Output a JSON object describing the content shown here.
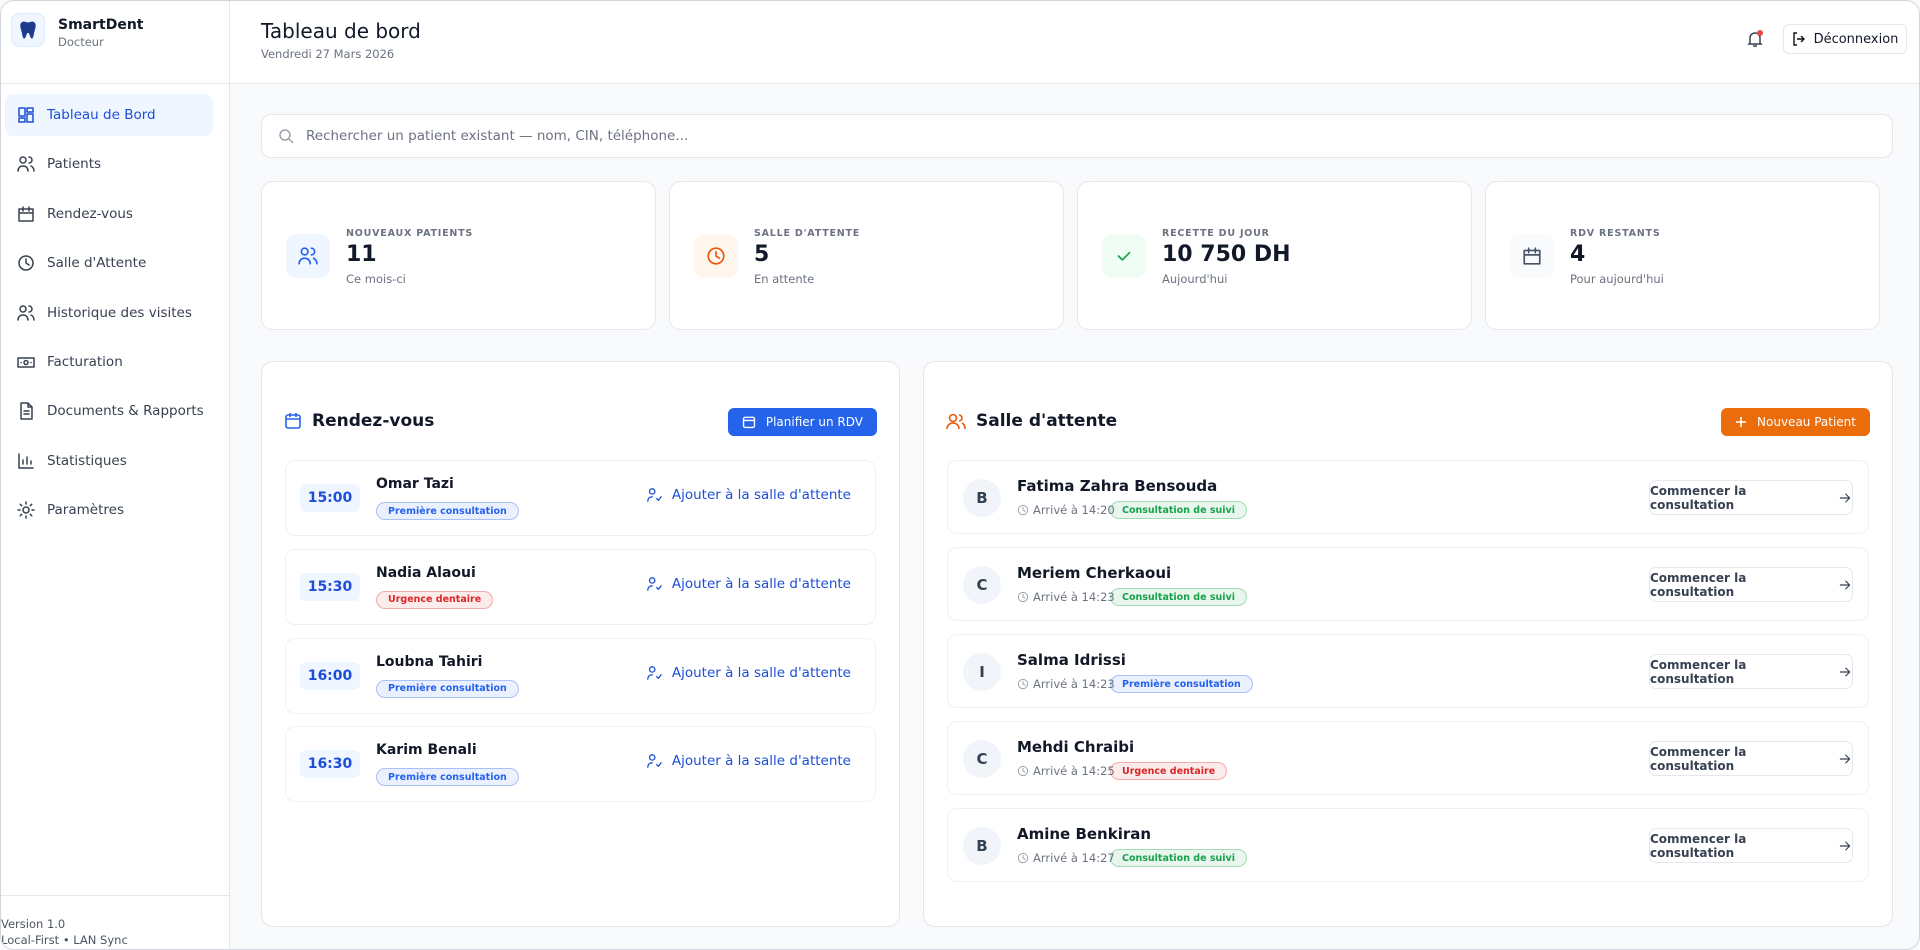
{
  "sidebar": {
    "brand": "SmartDent",
    "role": "Docteur",
    "nav": [
      "Tableau de Bord",
      "Patients",
      "Rendez-vous",
      "Salle d'Attente",
      "Historique des visites",
      "Facturation",
      "Documents & Rapports",
      "Statistiques",
      "Paramètres"
    ],
    "footer": [
      "Version 1.0",
      "Local-First • LAN Sync"
    ]
  },
  "header": {
    "title": "Tableau de bord",
    "date": "Vendredi 27 Mars 2026",
    "logout": "Déconnexion"
  },
  "search": {
    "placeholder": "Rechercher un patient existant — nom, CIN, téléphone..."
  },
  "stats": [
    {
      "label": "NOUVEAUX PATIENTS",
      "value": "11",
      "sub": "Ce mois-ci",
      "color": "#2563eb",
      "bg": "#eff6ff"
    },
    {
      "label": "SALLE D'ATTENTE",
      "value": "5",
      "sub": "En attente",
      "color": "#ea580c",
      "bg": "#fff7ed"
    },
    {
      "label": "RECETTE DU JOUR",
      "value": "10 750 DH",
      "sub": "Aujourd'hui",
      "color": "#16a34a",
      "bg": "#f0fdf4"
    },
    {
      "label": "RDV RESTANTS",
      "value": "4",
      "sub": "Pour aujourd'hui",
      "color": "#475569",
      "bg": "#f8fafc"
    }
  ],
  "appointments": {
    "title": "Rendez-vous",
    "button": "Planifier un RDV",
    "action": "Ajouter à la salle d'attente",
    "items": [
      {
        "time": "15:00",
        "name": "Omar Tazi",
        "tag": "Première consultation",
        "tag_color": "#2563eb"
      },
      {
        "time": "15:30",
        "name": "Nadia Alaoui",
        "tag": "Urgence dentaire",
        "tag_color": "#dc2626"
      },
      {
        "time": "16:00",
        "name": "Loubna Tahiri",
        "tag": "Première consultation",
        "tag_color": "#2563eb"
      },
      {
        "time": "16:30",
        "name": "Karim Benali",
        "tag": "Première consultation",
        "tag_color": "#2563eb"
      }
    ]
  },
  "waiting": {
    "title": "Salle d'attente",
    "button": "Nouveau Patient",
    "action": "Commencer la consultation",
    "items": [
      {
        "initial": "B",
        "name": "Fatima Zahra Bensouda",
        "arrival": "Arrivé à 14:20",
        "tag": "Consultation de suivi",
        "tag_color": "#16a34a"
      },
      {
        "initial": "C",
        "name": "Meriem Cherkaoui",
        "arrival": "Arrivé à 14:23",
        "tag": "Consultation de suivi",
        "tag_color": "#16a34a"
      },
      {
        "initial": "I",
        "name": "Salma Idrissi",
        "arrival": "Arrivé à 14:23",
        "tag": "Première consultation",
        "tag_color": "#2563eb"
      },
      {
        "initial": "C",
        "name": "Mehdi Chraibi",
        "arrival": "Arrivé à 14:25",
        "tag": "Urgence dentaire",
        "tag_color": "#dc2626"
      },
      {
        "initial": "B",
        "name": "Amine Benkiran",
        "arrival": "Arrivé à 14:27",
        "tag": "Consultation de suivi",
        "tag_color": "#16a34a"
      }
    ]
  }
}
